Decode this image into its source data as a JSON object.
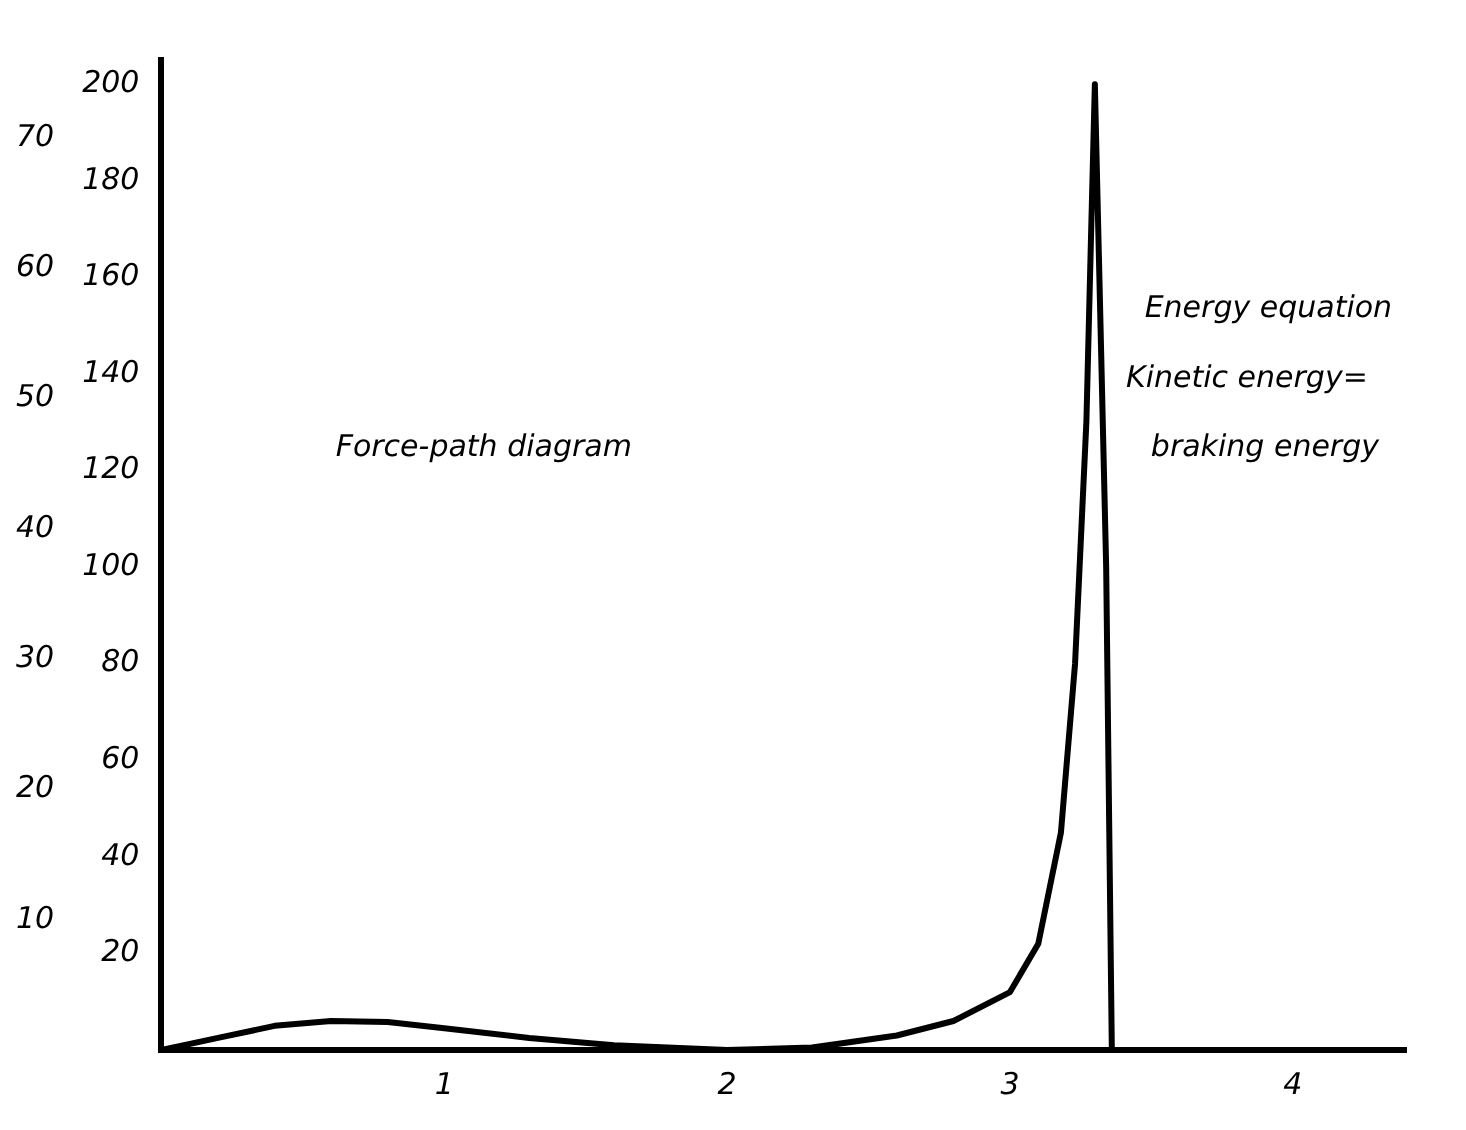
{
  "chart_data": {
    "type": "line",
    "color": "#000000",
    "x": [
      0,
      0.2,
      0.4,
      0.6,
      0.8,
      1,
      1.3,
      1.6,
      2,
      2.3,
      2.6,
      2.8,
      3,
      3.1,
      3.18,
      3.23,
      3.27,
      3.3,
      3.34,
      3.36
    ],
    "values": [
      0,
      2.5,
      5,
      6,
      5.8,
      4.5,
      2.5,
      1,
      0,
      0.5,
      3,
      6,
      12,
      22,
      45,
      80,
      130,
      200,
      100,
      0
    ],
    "xlim": [
      0,
      4.4
    ],
    "xticks": [
      1,
      2,
      3,
      4
    ],
    "ylim": [
      0,
      205
    ],
    "yticks": [
      20,
      40,
      60,
      80,
      100,
      120,
      140,
      160,
      180,
      200
    ],
    "y2lim": [
      0,
      76
    ],
    "y2ticks": [
      10,
      20,
      30,
      40,
      50,
      60,
      70
    ],
    "annotations": [
      "Force-path diagram",
      "Energy equation",
      "Kinetic energy=",
      "braking energy"
    ],
    "grid": false,
    "legend": false,
    "marker": "none",
    "line_style": "solid"
  }
}
